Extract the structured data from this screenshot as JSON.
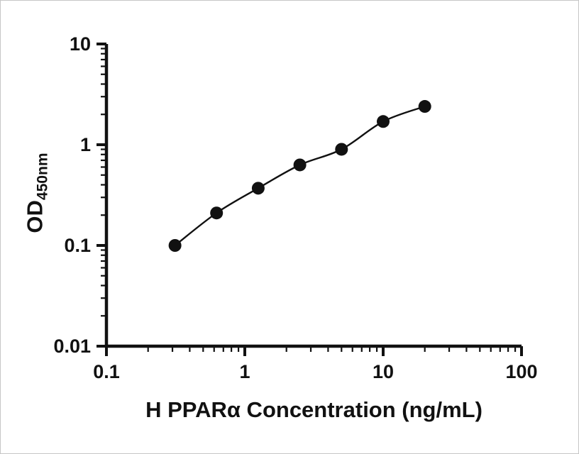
{
  "chart_data": {
    "type": "scatter",
    "title": "",
    "xlabel": "H PPARα Concentration (ng/mL)",
    "ylabel": "OD450nm",
    "ylabel_main": "OD",
    "ylabel_sub": "450nm",
    "x": [
      0.313,
      0.625,
      1.25,
      2.5,
      5,
      10,
      20
    ],
    "y": [
      0.1,
      0.21,
      0.37,
      0.63,
      0.9,
      1.7,
      2.4
    ],
    "xscale": "log",
    "yscale": "log",
    "xlim": [
      0.1,
      100
    ],
    "ylim": [
      0.01,
      10
    ],
    "x_ticks": [
      "0.1",
      "1",
      "10",
      "100"
    ],
    "y_ticks": [
      "0.01",
      "0.1",
      "1",
      "10"
    ],
    "grid": false,
    "legend": false,
    "marker_color": "#111111",
    "line_color": "#111111",
    "curve": "smooth fitted line through data points"
  }
}
